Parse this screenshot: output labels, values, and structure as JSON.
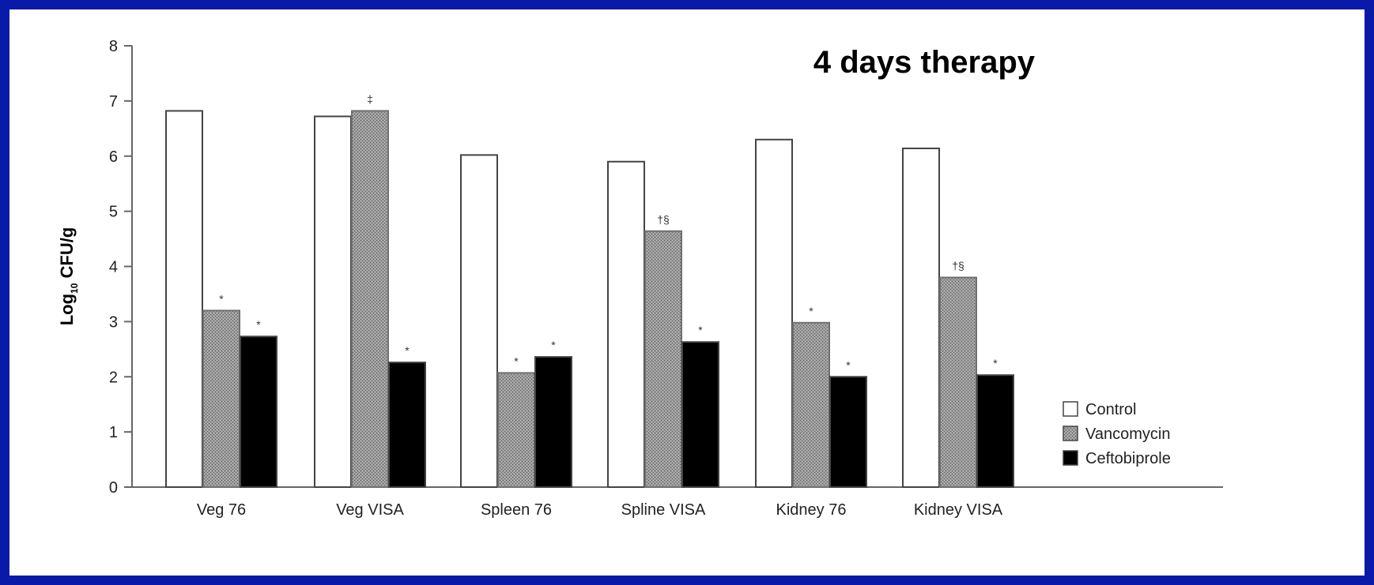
{
  "chart_data": {
    "type": "bar",
    "title": "4 days therapy",
    "xlabel": "",
    "ylabel": "Log10 CFU/g",
    "ylabel_parts": {
      "main": "Log",
      "sub": "10",
      "rest": " CFU/g"
    },
    "ylim": [
      0,
      8
    ],
    "yticks": [
      0,
      1,
      2,
      3,
      4,
      5,
      6,
      7,
      8
    ],
    "grid": false,
    "legend_position": "right",
    "categories": [
      "Veg 76",
      "Veg VISA",
      "Spleen 76",
      "Spline VISA",
      "Kidney 76",
      "Kidney VISA"
    ],
    "series": [
      {
        "name": "Control",
        "color": "#ffffff",
        "pattern": "none",
        "values": [
          6.82,
          6.72,
          6.02,
          5.9,
          6.3,
          6.14
        ],
        "notes": [
          "",
          "",
          "",
          "",
          "",
          ""
        ]
      },
      {
        "name": "Vancomycin",
        "color": "#8a8a8a",
        "pattern": "stipple",
        "values": [
          3.2,
          6.82,
          2.07,
          4.64,
          2.98,
          3.8
        ],
        "notes": [
          "*",
          "‡",
          "*",
          "†§",
          "*",
          "†§"
        ]
      },
      {
        "name": "Ceftobiprole",
        "color": "#000000",
        "pattern": "none",
        "values": [
          2.73,
          2.26,
          2.36,
          2.63,
          2.0,
          2.03
        ],
        "notes": [
          "*",
          "*",
          "*",
          "*",
          "*",
          "*"
        ]
      }
    ]
  },
  "colors": {
    "frame": "#0a1aa8",
    "background": "#ffffff",
    "axis": "#666666"
  }
}
